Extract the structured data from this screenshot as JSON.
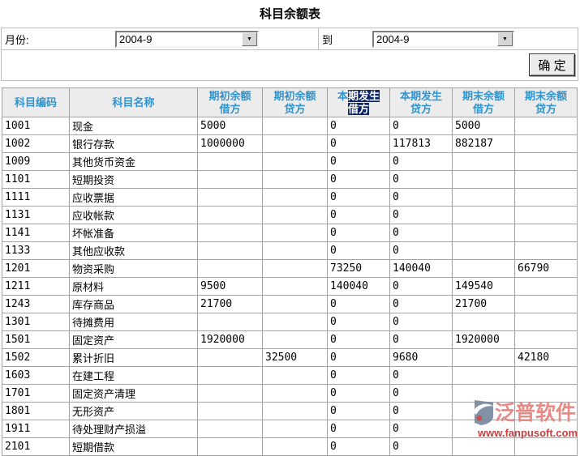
{
  "page": {
    "title": "科目余额表"
  },
  "icons": {
    "dropdown_arrow": "▼"
  },
  "colors": {
    "header_blue": "#3095cf",
    "select_navy": "#0a246a",
    "header_bg": "#ececec",
    "table_border": "#a3a3a3",
    "form_border": "#bdbdbd",
    "brand_pink": "#e4827c",
    "brand_red": "#c43030"
  },
  "filter": {
    "month_label": "月份:",
    "from_value": "2004-9",
    "to_label": "到",
    "to_value": "2004-9",
    "confirm_label": "确 定"
  },
  "table": {
    "headers": [
      "科目编码",
      "科目名称",
      "期初余额\n借方",
      "期初余额\n贷方",
      "本期发生\n借方",
      "本期发生\n贷方",
      "期末余额\n借方",
      "期末余额\n贷方"
    ],
    "header5_parts": {
      "pre": "本",
      "sel_line1": "期发生",
      "sel_line2": "借方"
    },
    "column_keys": [
      "code",
      "name",
      "begin-debit",
      "begin-credit",
      "period-debit",
      "period-credit",
      "end-debit",
      "end-credit"
    ],
    "rows": [
      [
        "1001",
        "现金",
        "5000",
        "",
        "0",
        "0",
        "5000",
        ""
      ],
      [
        "1002",
        "银行存款",
        "1000000",
        "",
        "0",
        "117813",
        "882187",
        ""
      ],
      [
        "1009",
        "其他货币资金",
        "",
        "",
        "0",
        "0",
        "",
        ""
      ],
      [
        "1101",
        "短期投资",
        "",
        "",
        "0",
        "0",
        "",
        ""
      ],
      [
        "1111",
        "应收票据",
        "",
        "",
        "0",
        "0",
        "",
        ""
      ],
      [
        "1131",
        "应收帐款",
        "",
        "",
        "0",
        "0",
        "",
        ""
      ],
      [
        "1141",
        "坏帐准备",
        "",
        "",
        "0",
        "0",
        "",
        ""
      ],
      [
        "1133",
        "其他应收款",
        "",
        "",
        "0",
        "0",
        "",
        ""
      ],
      [
        "1201",
        "物资采购",
        "",
        "",
        "73250",
        "140040",
        "",
        "66790"
      ],
      [
        "1211",
        "原材料",
        "9500",
        "",
        "140040",
        "0",
        "149540",
        ""
      ],
      [
        "1243",
        "库存商品",
        "21700",
        "",
        "0",
        "0",
        "21700",
        ""
      ],
      [
        "1301",
        "待摊费用",
        "",
        "",
        "0",
        "0",
        "",
        ""
      ],
      [
        "1501",
        "固定资产",
        "1920000",
        "",
        "0",
        "0",
        "1920000",
        ""
      ],
      [
        "1502",
        "累计折旧",
        "",
        "32500",
        "0",
        "9680",
        "",
        "42180"
      ],
      [
        "1603",
        "在建工程",
        "",
        "",
        "0",
        "0",
        "",
        ""
      ],
      [
        "1701",
        "固定资产清理",
        "",
        "",
        "0",
        "0",
        "",
        ""
      ],
      [
        "1801",
        "无形资产",
        "",
        "",
        "0",
        "0",
        "",
        ""
      ],
      [
        "1911",
        "待处理财产损溢",
        "",
        "",
        "0",
        "0",
        "",
        ""
      ],
      [
        "2101",
        "短期借款",
        "",
        "",
        "0",
        "0",
        "",
        ""
      ]
    ]
  },
  "watermark": {
    "logo_icon": "fanpu-logo-swoosh",
    "brand": "泛普软件",
    "url": "www.fanpusoft.com"
  }
}
